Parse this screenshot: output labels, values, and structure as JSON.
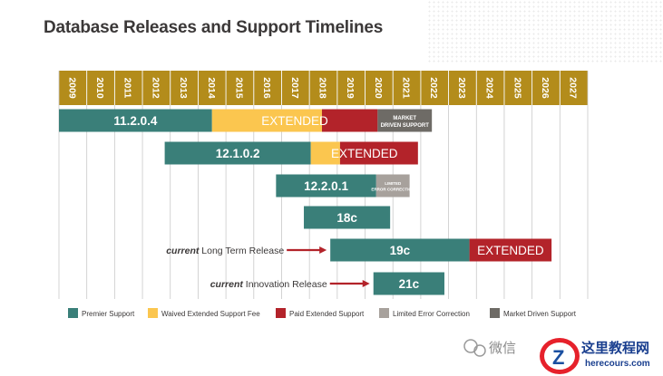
{
  "page": {
    "title": "Database Releases and Support Timelines"
  },
  "chart_data": {
    "type": "gantt",
    "title": "Database Releases and Support Timelines",
    "years": [
      "2009",
      "2010",
      "2011",
      "2012",
      "2013",
      "2014",
      "2015",
      "2016",
      "2017",
      "2018",
      "2019",
      "2020",
      "2021",
      "2022",
      "2023",
      "2024",
      "2025",
      "2026",
      "2027"
    ],
    "colors": {
      "premier": "#3a7f79",
      "waived": "#fbc64f",
      "paid": "#b3232a",
      "limited": "#a7a19c",
      "market": "#6e6b66",
      "header": "#b38c1b"
    },
    "rows": [
      {
        "name": "11.2.0.4",
        "segments": [
          {
            "type": "premier",
            "start": 2009.0,
            "end": 2014.5,
            "label": "11.2.0.4"
          },
          {
            "type": "waived",
            "start": 2014.5,
            "end": 2018.45,
            "label": ""
          },
          {
            "type": "paid",
            "start": 2018.45,
            "end": 2020.45,
            "label": ""
          },
          {
            "type": "market",
            "start": 2020.45,
            "end": 2022.4,
            "label": "MARKET DRIVEN SUPPORT"
          }
        ],
        "overlay": {
          "text": "EXTENDED",
          "start": 2014.5,
          "end": 2020.45
        }
      },
      {
        "name": "12.1.0.2",
        "segments": [
          {
            "type": "premier",
            "start": 2012.8,
            "end": 2018.05,
            "label": "12.1.0.2"
          },
          {
            "type": "waived",
            "start": 2018.05,
            "end": 2019.1,
            "label": ""
          },
          {
            "type": "paid",
            "start": 2019.1,
            "end": 2021.9,
            "label": ""
          }
        ],
        "overlay": {
          "text": "EXTENDED",
          "start": 2018.05,
          "end": 2021.9
        }
      },
      {
        "name": "12.2.0.1",
        "segments": [
          {
            "type": "premier",
            "start": 2016.8,
            "end": 2020.4,
            "label": "12.2.0.1"
          },
          {
            "type": "limited",
            "start": 2020.4,
            "end": 2021.6,
            "label": "LIMITED ERROR CORRECTION"
          }
        ]
      },
      {
        "name": "18c",
        "segments": [
          {
            "type": "premier",
            "start": 2017.8,
            "end": 2020.9,
            "label": "18c"
          }
        ]
      },
      {
        "name": "19c",
        "segments": [
          {
            "type": "premier",
            "start": 2018.75,
            "end": 2023.75,
            "label": "19c"
          },
          {
            "type": "paid",
            "start": 2023.75,
            "end": 2026.7,
            "label": "EXTENDED"
          }
        ],
        "annotation": {
          "italic": "current",
          "text": " Long Term Release"
        }
      },
      {
        "name": "21c",
        "segments": [
          {
            "type": "premier",
            "start": 2020.3,
            "end": 2022.85,
            "label": "21c"
          }
        ],
        "annotation": {
          "italic": "current",
          "text": " Innovation Release"
        }
      }
    ],
    "legend": [
      {
        "type": "premier",
        "label": "Premier Support"
      },
      {
        "type": "waived",
        "label": "Waived Extended Support Fee"
      },
      {
        "type": "paid",
        "label": "Paid Extended Support"
      },
      {
        "type": "limited",
        "label": "Limited Error Correction"
      },
      {
        "type": "market",
        "label": "Market Driven Support"
      }
    ]
  },
  "watermark": {
    "wechat_label": "微信",
    "site_name": "这里教程网",
    "site_url": "herecours.com"
  }
}
